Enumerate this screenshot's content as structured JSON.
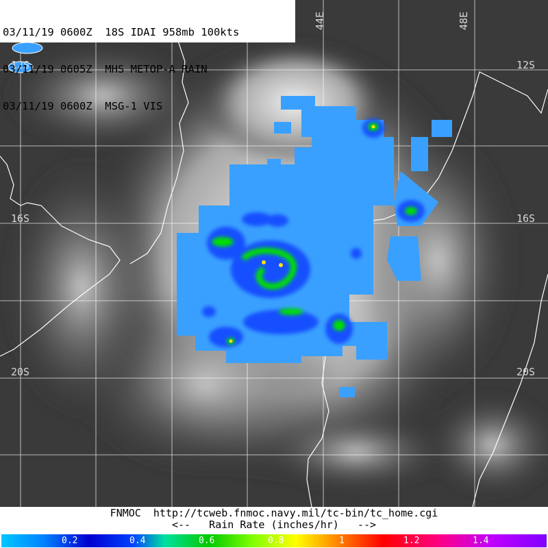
{
  "header": {
    "line1": "03/11/19 0600Z  18S IDAI 958mb 100kts",
    "line2": "03/11/19 0605Z  MHS METOP-A RAIN",
    "line3": "03/11/19 0600Z  MSG-1 VIS"
  },
  "grid": {
    "lon_labels": [
      "44E",
      "48E"
    ],
    "lat_labels": [
      "12S",
      "16S",
      "20S"
    ],
    "lat_labels_right": [
      "12S",
      "16S",
      "20S"
    ]
  },
  "footer": {
    "url_line": "FNMOC  http://tcweb.fnmoc.navy.mil/tc-bin/tc_home.cgi",
    "legend_line": "<--   Rain Rate (inches/hr)   -->"
  },
  "colorbar": {
    "ticks": [
      "0.2",
      "0.4",
      "0.6",
      "0.8",
      "1",
      "1.2",
      "1.4"
    ],
    "colors": [
      "#00a0ff",
      "#0060ff",
      "#0000c8",
      "#00c800",
      "#c8ff00",
      "#ffff00",
      "#ff8000",
      "#ff0000",
      "#ff0080",
      "#c000ff"
    ]
  },
  "colors": {
    "land_outline": "#ffffff",
    "grid_line": "#ffffff",
    "rain_light": "#3aa0ff",
    "rain_medium": "#1850ff",
    "rain_heavy": "#00e000",
    "rain_peak": "#ffe000"
  }
}
